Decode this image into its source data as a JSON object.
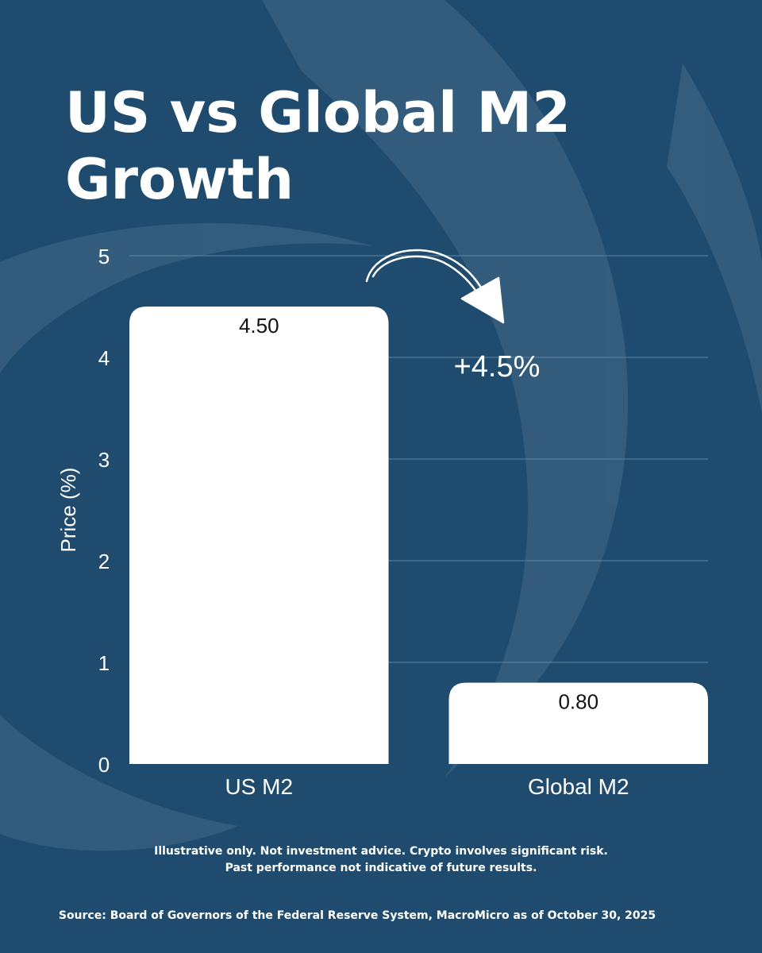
{
  "title": "US vs Global M2 Growth",
  "annotation": {
    "label": "+4.5%",
    "icon": "curved-arrow-icon"
  },
  "footer": {
    "disclaimer_line1": "Illustrative only. Not investment advice. Crypto involves significant risk.",
    "disclaimer_line2": "Past performance not indicative of future results.",
    "source": "Source: Board of Governors of the Federal Reserve System, MacroMicro as of October 30, 2025"
  },
  "colors": {
    "background": "#1e4b6e",
    "swirl": "#3b6282",
    "bar": "#ffffff",
    "text": "#ffffff",
    "bar_label": "#111111"
  },
  "chart_data": {
    "type": "bar",
    "title": "US vs Global M2 Growth",
    "categories": [
      "US M2",
      "Global M2"
    ],
    "values": [
      4.5,
      0.8
    ],
    "value_labels": [
      "4.50",
      "0.80"
    ],
    "xlabel": "",
    "ylabel": "Price (%)",
    "ylim": [
      0,
      5
    ],
    "yticks": [
      0,
      1,
      2,
      3,
      4,
      5
    ],
    "grid": true,
    "legend": "none"
  }
}
